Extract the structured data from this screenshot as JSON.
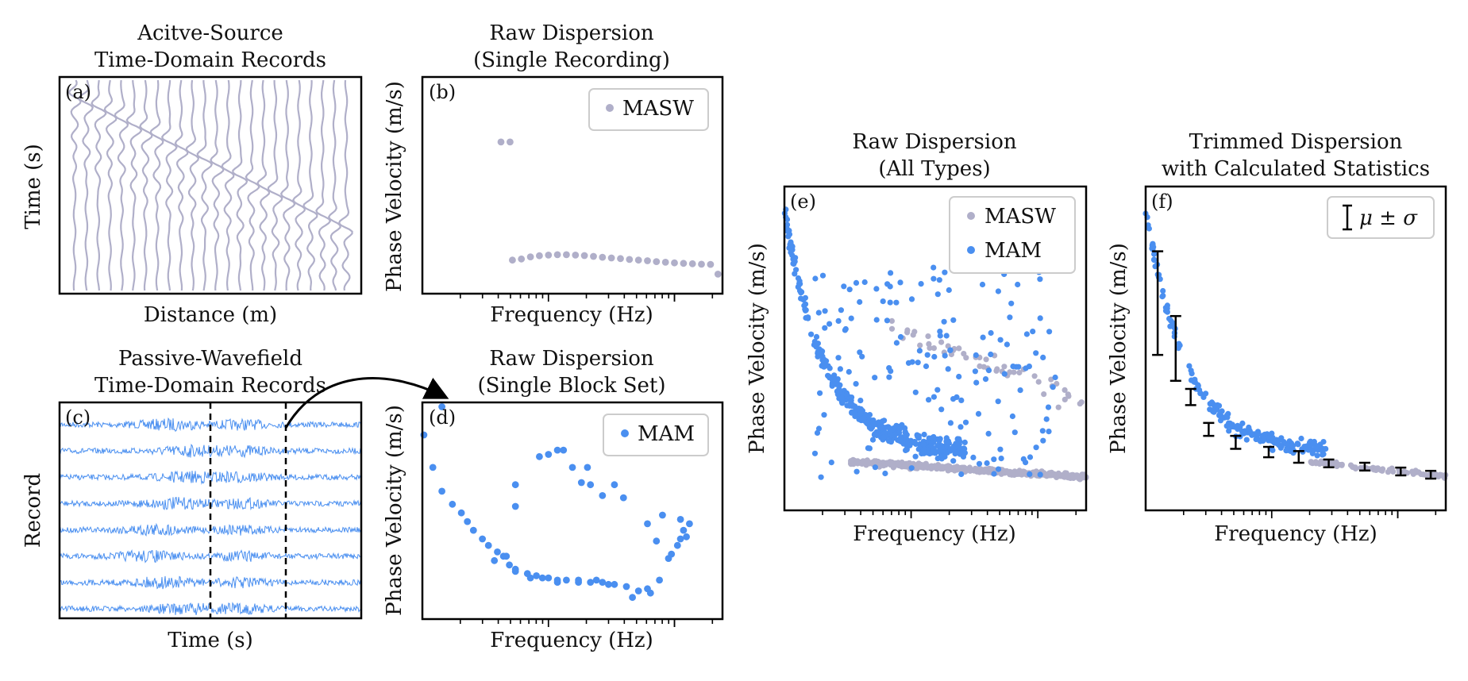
{
  "colors": {
    "masw": "#b0afc9",
    "mam": "#4a8ff0",
    "axis": "#000000",
    "stat": "#000000"
  },
  "chart_data": [
    {
      "id": "a",
      "type": "line",
      "panel_label": "(a)",
      "title": [
        "Acitve-Source",
        "Time-Domain Records"
      ],
      "xlabel": "Distance (m)",
      "ylabel": "Time (s)",
      "traces": 24,
      "grid": false
    },
    {
      "id": "b",
      "type": "scatter",
      "panel_label": "(b)",
      "title": [
        "Raw Dispersion",
        "(Single Recording)"
      ],
      "xlabel": "Frequency (Hz)",
      "ylabel": "Phase Velocity (m/s)",
      "xscale": "log",
      "legend": [
        "MASW"
      ],
      "legend_position": "top-right",
      "series": [
        {
          "name": "MASW",
          "key": "masw",
          "points": [
            [
              0.262,
              0.7
            ],
            [
              0.292,
              0.7
            ],
            [
              0.3,
              0.155
            ],
            [
              0.33,
              0.16
            ],
            [
              0.36,
              0.17
            ],
            [
              0.39,
              0.175
            ],
            [
              0.42,
              0.178
            ],
            [
              0.45,
              0.18
            ],
            [
              0.48,
              0.18
            ],
            [
              0.51,
              0.178
            ],
            [
              0.54,
              0.176
            ],
            [
              0.57,
              0.172
            ],
            [
              0.6,
              0.168
            ],
            [
              0.63,
              0.165
            ],
            [
              0.66,
              0.162
            ],
            [
              0.69,
              0.158
            ],
            [
              0.72,
              0.155
            ],
            [
              0.75,
              0.152
            ],
            [
              0.78,
              0.148
            ],
            [
              0.81,
              0.145
            ],
            [
              0.84,
              0.142
            ],
            [
              0.87,
              0.14
            ],
            [
              0.9,
              0.138
            ],
            [
              0.93,
              0.136
            ],
            [
              0.96,
              0.135
            ],
            [
              0.985,
              0.09
            ]
          ]
        }
      ]
    },
    {
      "id": "c",
      "type": "line",
      "panel_label": "(c)",
      "title": [
        "Passive-Wavefield",
        "Time-Domain Records"
      ],
      "xlabel": "Time (s)",
      "ylabel": "Record",
      "traces": 8,
      "block_markers": [
        0.5,
        0.75
      ]
    },
    {
      "id": "d",
      "type": "scatter",
      "panel_label": "(d)",
      "title": [
        "Raw Dispersion",
        "(Single Block Set)"
      ],
      "xlabel": "Frequency (Hz)",
      "ylabel": "Phase Velocity (m/s)",
      "xscale": "log",
      "legend": [
        "MAM"
      ],
      "legend_position": "top-right",
      "series": [
        {
          "name": "MAM",
          "key": "mam",
          "points": [
            [
              0.005,
              0.85
            ],
            [
              0.065,
              0.98
            ],
            [
              0.035,
              0.7
            ],
            [
              0.065,
              0.59
            ],
            [
              0.1,
              0.53
            ],
            [
              0.13,
              0.49
            ],
            [
              0.15,
              0.45
            ],
            [
              0.17,
              0.41
            ],
            [
              0.2,
              0.37
            ],
            [
              0.22,
              0.34
            ],
            [
              0.25,
              0.31
            ],
            [
              0.27,
              0.29
            ],
            [
              0.29,
              0.25
            ],
            [
              0.31,
              0.23
            ],
            [
              0.35,
              0.21
            ],
            [
              0.38,
              0.2
            ],
            [
              0.42,
              0.19
            ],
            [
              0.45,
              0.18
            ],
            [
              0.48,
              0.18
            ],
            [
              0.52,
              0.18
            ],
            [
              0.56,
              0.17
            ],
            [
              0.6,
              0.17
            ],
            [
              0.64,
              0.16
            ],
            [
              0.68,
              0.15
            ],
            [
              0.72,
              0.13
            ],
            [
              0.76,
              0.12
            ],
            [
              0.79,
              0.18
            ],
            [
              0.82,
              0.28
            ],
            [
              0.85,
              0.34
            ],
            [
              0.87,
              0.41
            ],
            [
              0.89,
              0.44
            ],
            [
              0.93,
              0.8
            ],
            [
              0.24,
              0.27
            ],
            [
              0.28,
              0.29
            ],
            [
              0.31,
              0.22
            ],
            [
              0.36,
              0.19
            ],
            [
              0.4,
              0.19
            ],
            [
              0.45,
              0.17
            ],
            [
              0.52,
              0.17
            ],
            [
              0.58,
              0.18
            ],
            [
              0.62,
              0.16
            ],
            [
              0.7,
              0.1
            ],
            [
              0.75,
              0.14
            ],
            [
              0.83,
              0.3
            ],
            [
              0.86,
              0.37
            ],
            [
              0.31,
              0.52
            ],
            [
              0.42,
              0.76
            ],
            [
              0.45,
              0.78
            ],
            [
              0.47,
              0.78
            ],
            [
              0.5,
              0.7
            ],
            [
              0.53,
              0.63
            ],
            [
              0.56,
              0.62
            ],
            [
              0.6,
              0.57
            ],
            [
              0.64,
              0.62
            ],
            [
              0.67,
              0.56
            ],
            [
              0.31,
              0.62
            ],
            [
              0.55,
              0.7
            ],
            [
              0.39,
              0.75
            ],
            [
              0.75,
              0.44
            ],
            [
              0.78,
              0.36
            ],
            [
              0.86,
              0.46
            ],
            [
              0.88,
              0.38
            ],
            [
              0.8,
              0.48
            ]
          ]
        }
      ]
    },
    {
      "id": "e",
      "type": "scatter",
      "panel_label": "(e)",
      "title": [
        "Raw Dispersion",
        "(All Types)"
      ],
      "xlabel": "Frequency (Hz)",
      "ylabel": "Phase Velocity (m/s)",
      "xscale": "log",
      "legend": [
        "MASW",
        "MAM"
      ],
      "legend_position": "top-right"
    },
    {
      "id": "f",
      "type": "scatter",
      "panel_label": "(f)",
      "title": [
        "Trimmed Dispersion",
        "with Calculated Statistics"
      ],
      "xlabel": "Frequency (Hz)",
      "ylabel": "Phase Velocity (m/s)",
      "xscale": "log",
      "legend": [
        "μ ± σ"
      ],
      "legend_position": "top-right",
      "stats": [
        {
          "x": 0.04,
          "mean": 0.64,
          "sd": 0.16
        },
        {
          "x": 0.1,
          "mean": 0.5,
          "sd": 0.1
        },
        {
          "x": 0.15,
          "mean": 0.35,
          "sd": 0.025
        },
        {
          "x": 0.21,
          "mean": 0.25,
          "sd": 0.02
        },
        {
          "x": 0.3,
          "mean": 0.21,
          "sd": 0.02
        },
        {
          "x": 0.41,
          "mean": 0.18,
          "sd": 0.016
        },
        {
          "x": 0.51,
          "mean": 0.165,
          "sd": 0.018
        },
        {
          "x": 0.61,
          "mean": 0.145,
          "sd": 0.012
        },
        {
          "x": 0.73,
          "mean": 0.135,
          "sd": 0.012
        },
        {
          "x": 0.85,
          "mean": 0.12,
          "sd": 0.012
        },
        {
          "x": 0.95,
          "mean": 0.11,
          "sd": 0.012
        }
      ]
    }
  ]
}
